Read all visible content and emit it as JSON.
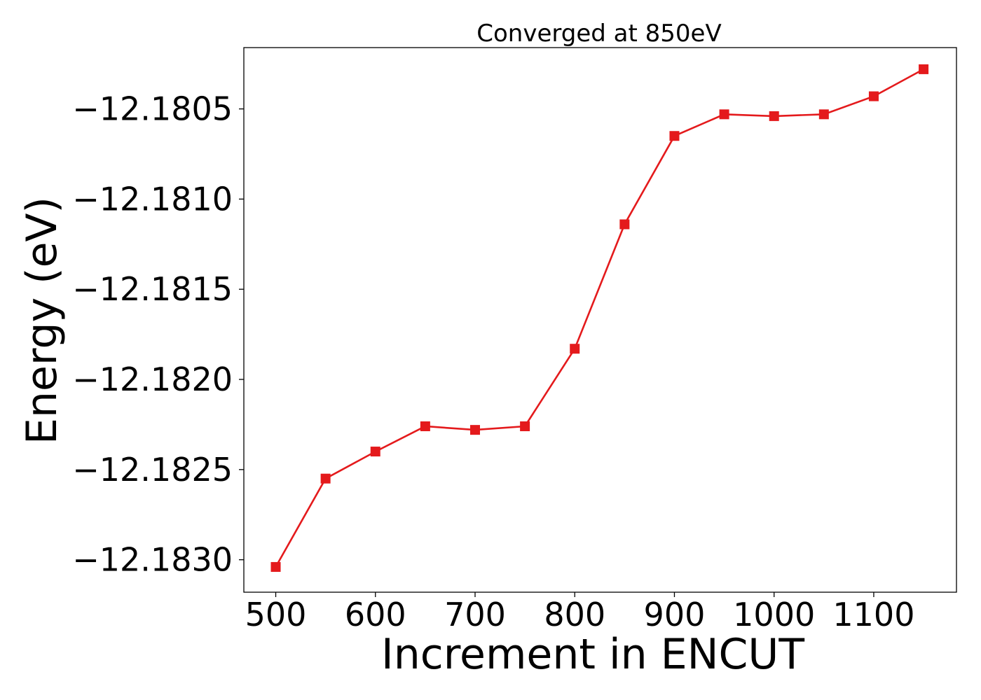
{
  "chart_data": {
    "type": "line",
    "title": "Converged at 850eV",
    "xlabel": "Increment in ENCUT",
    "ylabel": "Energy (eV)",
    "x": [
      500,
      550,
      600,
      650,
      700,
      750,
      800,
      850,
      900,
      950,
      1000,
      1050,
      1100,
      1150
    ],
    "series": [
      {
        "values": [
          -12.18304,
          -12.18255,
          -12.1824,
          -12.18226,
          -12.18228,
          -12.18226,
          -12.18183,
          -12.18114,
          -12.18065,
          -12.18053,
          -12.18054,
          -12.18053,
          -12.18043,
          -12.18028
        ],
        "color": "#e41a1c",
        "marker": "square"
      }
    ],
    "xticks": [
      500,
      600,
      700,
      800,
      900,
      1000,
      1100
    ],
    "xtick_labels": [
      "500",
      "600",
      "700",
      "800",
      "900",
      "1000",
      "1100"
    ],
    "yticks": [
      -12.183,
      -12.1825,
      -12.182,
      -12.1815,
      -12.181,
      -12.1805
    ],
    "ytick_labels": [
      "−12.1830",
      "−12.1825",
      "−12.1820",
      "−12.1815",
      "−12.1810",
      "−12.1805"
    ],
    "xlim": [
      468,
      1183
    ],
    "ylim": [
      -12.18318,
      -12.18016
    ],
    "grid": false,
    "legend": "none"
  }
}
